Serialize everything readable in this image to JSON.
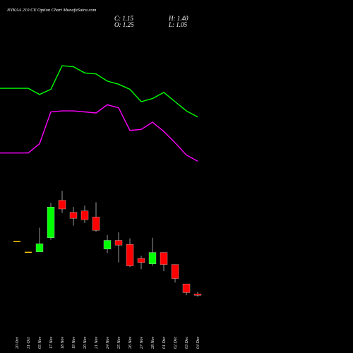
{
  "chart_data": {
    "type": "candlestick",
    "title": "NYKAA 210 CE Option Chart MunafaSutra.com",
    "ohlc_display": {
      "c": "C: 1.15",
      "o": "O: 1.25",
      "h": "H: 1.40",
      "l": "L: 1.05"
    },
    "categories": [
      "20 Oct",
      "31 Oct",
      "05 Nov",
      "17 Nov",
      "18 Nov",
      "19 Nov",
      "20 Nov",
      "21 Nov",
      "24 Nov",
      "25 Nov",
      "26 Nov",
      "27 Nov",
      "28 Nov",
      "01 Dec",
      "02 Dec",
      "03 Dec",
      "04 Dec"
    ],
    "candles": [
      {
        "o": 5.2,
        "h": 5.2,
        "l": 5.2,
        "c": 5.2
      },
      {
        "o": 4.4,
        "h": 4.4,
        "l": 4.4,
        "c": 4.4
      },
      {
        "o": 4.4,
        "h": 6.2,
        "l": 4.4,
        "c": 5.0
      },
      {
        "o": 5.45,
        "h": 8.05,
        "l": 5.3,
        "c": 7.75
      },
      {
        "o": 8.25,
        "h": 8.95,
        "l": 7.3,
        "c": 7.6
      },
      {
        "o": 7.35,
        "h": 7.75,
        "l": 6.35,
        "c": 6.9
      },
      {
        "o": 7.45,
        "h": 7.85,
        "l": 6.55,
        "c": 6.8
      },
      {
        "o": 7.0,
        "h": 8.1,
        "l": 5.9,
        "c": 6.0
      },
      {
        "o": 4.6,
        "h": 5.65,
        "l": 4.3,
        "c": 5.25
      },
      {
        "o": 5.25,
        "h": 5.85,
        "l": 3.6,
        "c": 4.9
      },
      {
        "o": 4.95,
        "h": 5.4,
        "l": 3.25,
        "c": 3.35
      },
      {
        "o": 3.9,
        "h": 4.1,
        "l": 3.1,
        "c": 3.6
      },
      {
        "o": 3.5,
        "h": 5.45,
        "l": 3.35,
        "c": 4.35
      },
      {
        "o": 4.35,
        "h": 4.35,
        "l": 2.95,
        "c": 3.45
      },
      {
        "o": 3.45,
        "h": 3.45,
        "l": 2.1,
        "c": 2.4
      },
      {
        "o": 2.0,
        "h": 2.0,
        "l": 1.15,
        "c": 1.35
      },
      {
        "o": 1.25,
        "h": 1.4,
        "l": 1.05,
        "c": 1.15
      }
    ],
    "upper_line": {
      "color": "#00ff00",
      "values": [
        17.9,
        17.9,
        17.3,
        17.8,
        20.1,
        20.0,
        19.4,
        19.3,
        18.6,
        18.3,
        17.8,
        16.6,
        16.9,
        17.5,
        16.6,
        15.7,
        15.1
      ]
    },
    "lower_line": {
      "color": "#ff00ff",
      "values": [
        11.6,
        11.6,
        12.5,
        15.6,
        15.7,
        15.7,
        15.6,
        15.5,
        16.3,
        16.0,
        13.8,
        13.9,
        14.6,
        13.7,
        12.6,
        11.4,
        10.8
      ]
    },
    "colors": {
      "up": "#00ff00",
      "down": "#ff0000",
      "flat": "#ffcc00",
      "wick": "#999999"
    },
    "grid": false
  }
}
